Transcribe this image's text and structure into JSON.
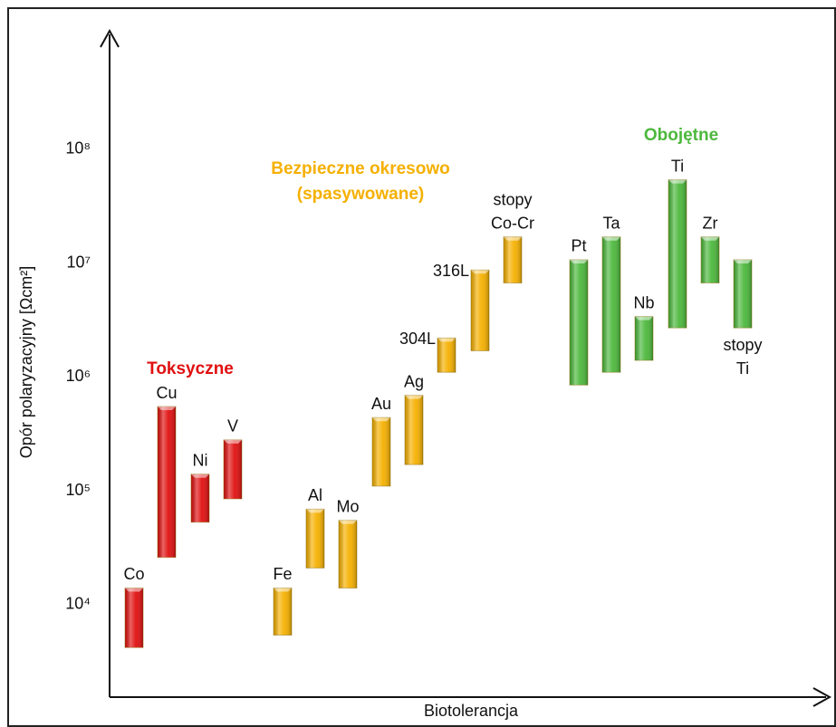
{
  "chart_data": {
    "type": "range",
    "ylabel": "Opór polaryzacyjny [Ωcm²]",
    "xlabel": "Biotolerancja",
    "log_scale": true,
    "ylim": [
      1540,
      1100000000
    ],
    "yticks": [
      {
        "value": 10000,
        "label": "10⁴"
      },
      {
        "value": 100000,
        "label": "10⁵"
      },
      {
        "value": 1000000,
        "label": "10⁶"
      },
      {
        "value": 10000000,
        "label": "10⁷"
      },
      {
        "value": 100000000,
        "label": "10⁸"
      }
    ],
    "series": [
      {
        "name": [
          "Toksyczne"
        ],
        "color": "#e01010",
        "categories": [
          [
            "Co"
          ],
          [
            "Cu"
          ],
          [
            "Ni"
          ],
          [
            "V"
          ]
        ],
        "low": [
          4200,
          26000,
          53000,
          85000
        ],
        "high": [
          14000,
          550000,
          140000,
          280000
        ]
      },
      {
        "name": [
          "Bezpieczne okresowo",
          "(spasywowane)"
        ],
        "color": "#f5b000",
        "categories": [
          [
            "Fe"
          ],
          [
            "Al"
          ],
          [
            "Mo"
          ],
          [
            "Au"
          ],
          [
            "Ag"
          ],
          [
            "304L"
          ],
          [
            "316L"
          ],
          [
            "stopy",
            "Co-Cr"
          ]
        ],
        "low": [
          5400,
          21000,
          14000,
          110000,
          170000,
          1100000,
          1700000,
          6700000
        ],
        "high": [
          14000,
          69000,
          55000,
          440000,
          690000,
          2200000,
          8700000,
          17000000
        ]
      },
      {
        "name": [
          "Obojętne"
        ],
        "color": "#4cb83c",
        "categories": [
          [
            "Pt"
          ],
          [
            "Ta"
          ],
          [
            "Nb"
          ],
          [
            "Ti"
          ],
          [
            "Zr"
          ],
          [
            "stopy",
            "Ti"
          ]
        ],
        "low": [
          850000,
          1100000,
          1400000,
          2700000,
          6700000,
          2700000
        ],
        "high": [
          10700000,
          17000000,
          3400000,
          54000000,
          17000000,
          10700000
        ]
      }
    ]
  }
}
